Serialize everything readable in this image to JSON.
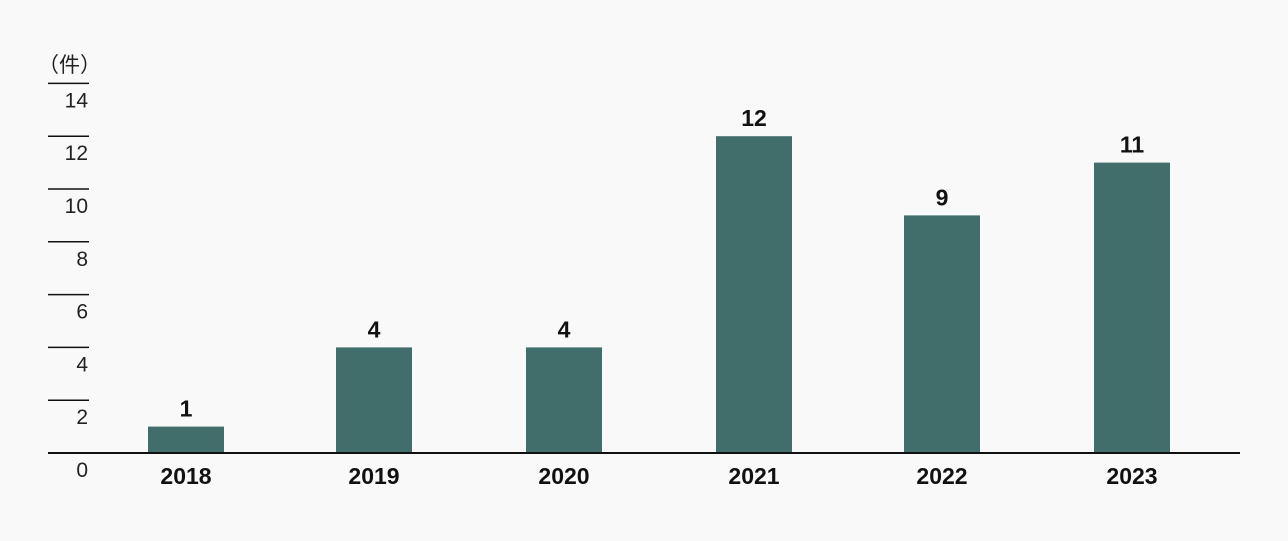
{
  "chart_data": {
    "type": "bar",
    "unit_label": "（件）",
    "categories": [
      "2018",
      "2019",
      "2020",
      "2021",
      "2022",
      "2023"
    ],
    "values": [
      1,
      4,
      4,
      12,
      9,
      11
    ],
    "data_labels": [
      "1",
      "4",
      "4",
      "12",
      "9",
      "11"
    ],
    "y_ticks": [
      "0",
      "2",
      "4",
      "6",
      "8",
      "10",
      "12",
      "14"
    ],
    "ylim": [
      0,
      14
    ],
    "grid": false,
    "bar_color": "#416d6a",
    "axis_color": "#111111"
  }
}
